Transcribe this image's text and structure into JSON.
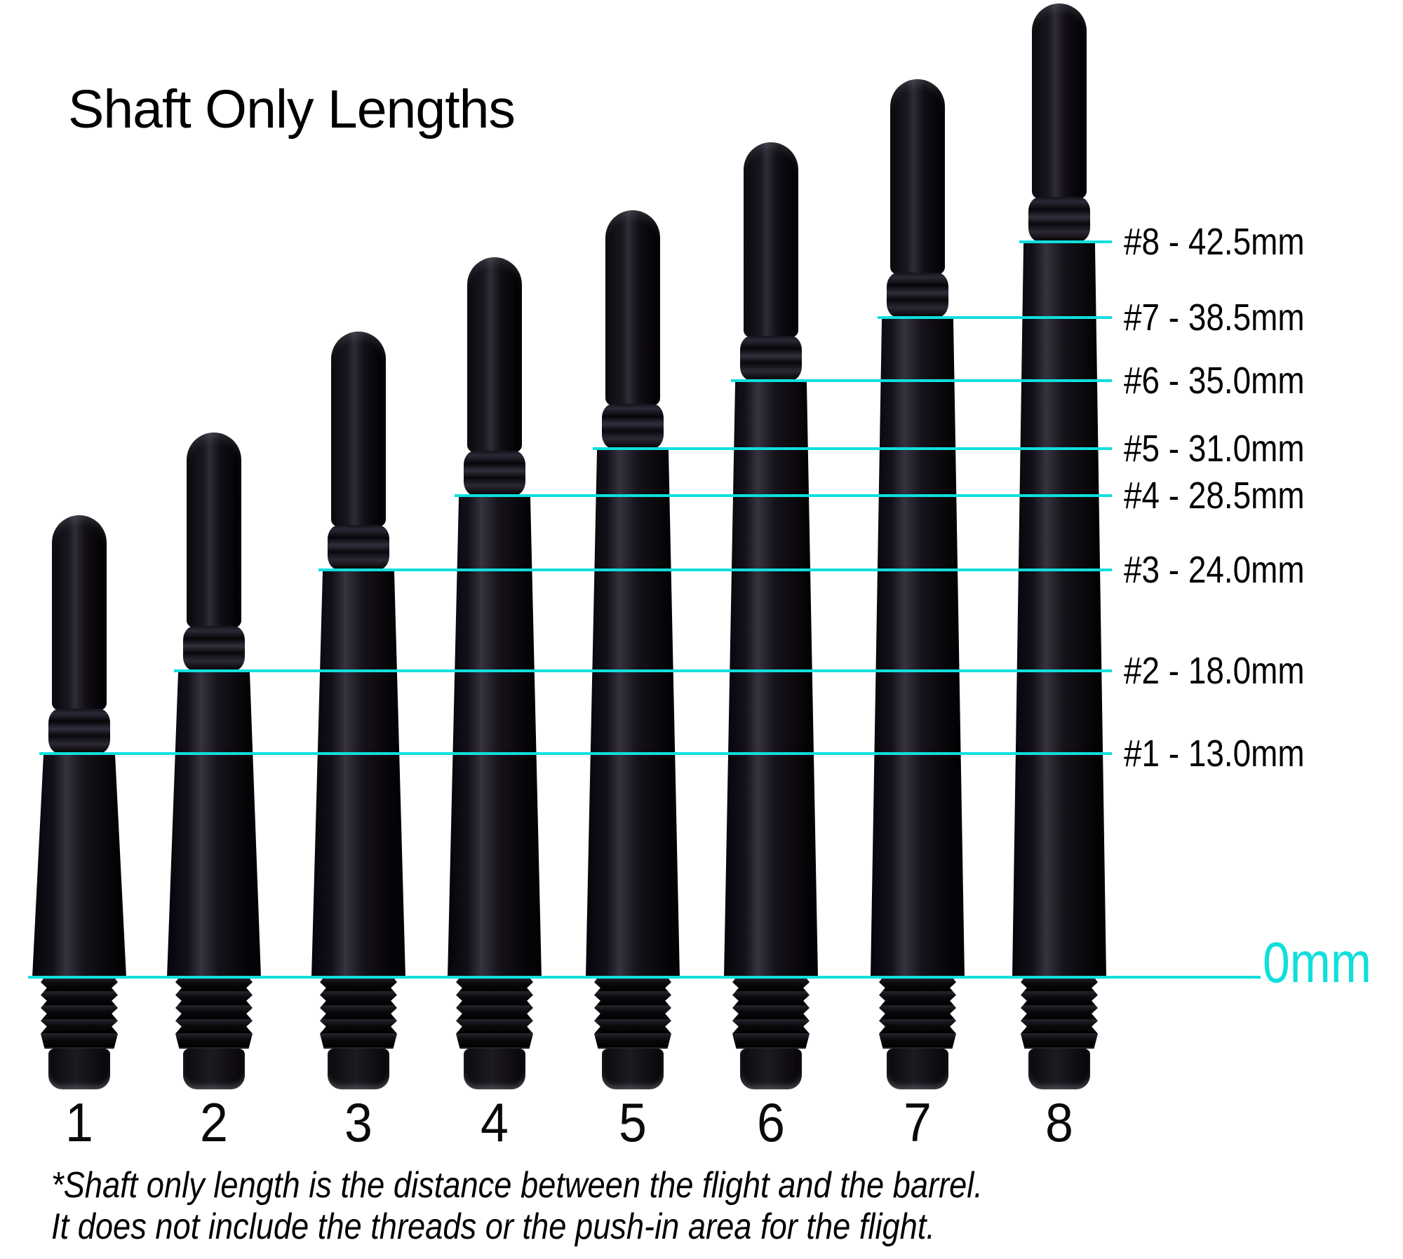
{
  "title": "Shaft Only Lengths",
  "colors": {
    "accent": "#10dfdd",
    "shaft": "#0c0a0e",
    "text": "#000000"
  },
  "baseline_label": "0mm",
  "shafts": [
    {
      "number": "1",
      "length_mm": 13.0,
      "label": "#1 - 13.0mm"
    },
    {
      "number": "2",
      "length_mm": 18.0,
      "label": "#2 - 18.0mm"
    },
    {
      "number": "3",
      "length_mm": 24.0,
      "label": "#3 - 24.0mm"
    },
    {
      "number": "4",
      "length_mm": 28.5,
      "label": "#4 - 28.5mm"
    },
    {
      "number": "5",
      "length_mm": 31.0,
      "label": "#5 - 31.0mm"
    },
    {
      "number": "6",
      "length_mm": 35.0,
      "label": "#6 - 35.0mm"
    },
    {
      "number": "7",
      "length_mm": 38.5,
      "label": "#7 - 38.5mm"
    },
    {
      "number": "8",
      "length_mm": 42.5,
      "label": "#8 - 42.5mm"
    }
  ],
  "footnote": {
    "line1": "*Shaft only length is the distance between the flight and the barrel.",
    "line2": "It does not include the threads or the push-in area for the flight."
  }
}
